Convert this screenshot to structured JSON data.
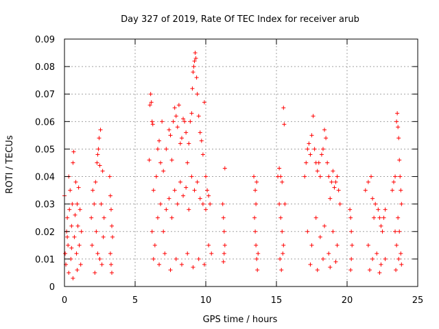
{
  "chart_data": {
    "type": "scatter",
    "title": "Day 327 of 2019, Rate Of TEC Index for receiver arub",
    "xlabel": "GPS time / hours",
    "ylabel": "ROTI / TECUs",
    "xlim": [
      0,
      25
    ],
    "ylim": [
      0,
      0.09
    ],
    "x_ticks": [
      0,
      5,
      10,
      15,
      20,
      25
    ],
    "x_tick_labels": [
      "0",
      "5",
      "10",
      "15",
      "20",
      "25"
    ],
    "y_ticks": [
      0,
      0.01,
      0.02,
      0.03,
      0.04,
      0.05,
      0.06,
      0.07,
      0.08,
      0.09
    ],
    "y_tick_labels": [
      "0",
      "0.01",
      "0.02",
      "0.03",
      "0.04",
      "0.05",
      "0.06",
      "0.07",
      "0.08",
      "0.09"
    ],
    "grid": true,
    "marker": "+",
    "color": "#ff0000",
    "series": [
      {
        "name": "ROTI",
        "points": [
          [
            0.0,
            0.033
          ],
          [
            0.05,
            0.012
          ],
          [
            0.1,
            0.008
          ],
          [
            0.15,
            0.02
          ],
          [
            0.2,
            0.025
          ],
          [
            0.25,
            0.015
          ],
          [
            0.3,
            0.04
          ],
          [
            0.35,
            0.028
          ],
          [
            0.4,
            0.035
          ],
          [
            0.45,
            0.01
          ],
          [
            0.5,
            0.022
          ],
          [
            0.55,
            0.03
          ],
          [
            0.6,
            0.045
          ],
          [
            0.65,
            0.049
          ],
          [
            0.7,
            0.018
          ],
          [
            0.75,
            0.026
          ],
          [
            0.8,
            0.038
          ],
          [
            0.85,
            0.012
          ],
          [
            0.9,
            0.03
          ],
          [
            0.95,
            0.022
          ],
          [
            1.0,
            0.036
          ],
          [
            1.05,
            0.015
          ],
          [
            1.1,
            0.028
          ],
          [
            1.15,
            0.008
          ],
          [
            1.2,
            0.02
          ],
          [
            0.3,
            0.005
          ],
          [
            0.6,
            0.003
          ],
          [
            0.9,
            0.006
          ],
          [
            0.2,
            0.018
          ],
          [
            0.5,
            0.014
          ],
          [
            1.9,
            0.025
          ],
          [
            2.0,
            0.035
          ],
          [
            2.1,
            0.03
          ],
          [
            2.2,
            0.038
          ],
          [
            2.3,
            0.045
          ],
          [
            2.35,
            0.048
          ],
          [
            2.4,
            0.05
          ],
          [
            2.45,
            0.054
          ],
          [
            2.5,
            0.044
          ],
          [
            2.55,
            0.057
          ],
          [
            2.6,
            0.03
          ],
          [
            2.7,
            0.042
          ],
          [
            2.8,
            0.025
          ],
          [
            1.95,
            0.015
          ],
          [
            2.25,
            0.02
          ],
          [
            2.5,
            0.01
          ],
          [
            2.65,
            0.008
          ],
          [
            2.15,
            0.005
          ],
          [
            2.35,
            0.012
          ],
          [
            2.75,
            0.018
          ],
          [
            3.2,
            0.04
          ],
          [
            3.25,
            0.033
          ],
          [
            3.3,
            0.028
          ],
          [
            3.35,
            0.022
          ],
          [
            3.4,
            0.018
          ],
          [
            3.25,
            0.012
          ],
          [
            3.3,
            0.008
          ],
          [
            3.35,
            0.005
          ],
          [
            6.0,
            0.046
          ],
          [
            6.05,
            0.066
          ],
          [
            6.1,
            0.07
          ],
          [
            6.15,
            0.067
          ],
          [
            6.2,
            0.06
          ],
          [
            6.25,
            0.059
          ],
          [
            6.3,
            0.035
          ],
          [
            6.5,
            0.04
          ],
          [
            6.6,
            0.05
          ],
          [
            6.7,
            0.053
          ],
          [
            6.8,
            0.045
          ],
          [
            6.9,
            0.06
          ],
          [
            7.0,
            0.042
          ],
          [
            7.2,
            0.05
          ],
          [
            7.4,
            0.057
          ],
          [
            7.5,
            0.055
          ],
          [
            7.6,
            0.046
          ],
          [
            7.7,
            0.06
          ],
          [
            7.8,
            0.065
          ],
          [
            7.9,
            0.062
          ],
          [
            8.0,
            0.058
          ],
          [
            8.1,
            0.066
          ],
          [
            8.2,
            0.052
          ],
          [
            8.3,
            0.054
          ],
          [
            8.4,
            0.061
          ],
          [
            8.5,
            0.06
          ],
          [
            8.6,
            0.056
          ],
          [
            8.7,
            0.045
          ],
          [
            8.8,
            0.052
          ],
          [
            8.9,
            0.06
          ],
          [
            9.0,
            0.063
          ],
          [
            9.05,
            0.072
          ],
          [
            9.1,
            0.078
          ],
          [
            9.15,
            0.08
          ],
          [
            9.2,
            0.082
          ],
          [
            9.25,
            0.085
          ],
          [
            9.3,
            0.083
          ],
          [
            9.35,
            0.076
          ],
          [
            9.4,
            0.07
          ],
          [
            9.5,
            0.062
          ],
          [
            9.6,
            0.056
          ],
          [
            9.7,
            0.053
          ],
          [
            9.8,
            0.048
          ],
          [
            9.9,
            0.067
          ],
          [
            10.0,
            0.04
          ],
          [
            10.1,
            0.035
          ],
          [
            10.2,
            0.033
          ],
          [
            10.3,
            0.03
          ],
          [
            6.2,
            0.02
          ],
          [
            6.4,
            0.015
          ],
          [
            6.6,
            0.025
          ],
          [
            6.8,
            0.03
          ],
          [
            7.0,
            0.02
          ],
          [
            7.2,
            0.028
          ],
          [
            7.4,
            0.032
          ],
          [
            7.6,
            0.025
          ],
          [
            7.8,
            0.035
          ],
          [
            8.0,
            0.03
          ],
          [
            8.2,
            0.038
          ],
          [
            8.4,
            0.033
          ],
          [
            8.6,
            0.036
          ],
          [
            8.8,
            0.028
          ],
          [
            9.0,
            0.04
          ],
          [
            9.2,
            0.035
          ],
          [
            9.4,
            0.038
          ],
          [
            9.6,
            0.032
          ],
          [
            9.8,
            0.03
          ],
          [
            10.0,
            0.028
          ],
          [
            6.3,
            0.01
          ],
          [
            6.7,
            0.008
          ],
          [
            7.1,
            0.012
          ],
          [
            7.5,
            0.006
          ],
          [
            7.9,
            0.01
          ],
          [
            8.3,
            0.008
          ],
          [
            8.7,
            0.012
          ],
          [
            9.1,
            0.007
          ],
          [
            9.5,
            0.01
          ],
          [
            9.9,
            0.008
          ],
          [
            10.2,
            0.015
          ],
          [
            10.4,
            0.012
          ],
          [
            11.2,
            0.03
          ],
          [
            11.25,
            0.025
          ],
          [
            11.3,
            0.02
          ],
          [
            11.35,
            0.015
          ],
          [
            11.3,
            0.012
          ],
          [
            11.25,
            0.009
          ],
          [
            11.35,
            0.043
          ],
          [
            13.4,
            0.04
          ],
          [
            13.5,
            0.035
          ],
          [
            13.55,
            0.03
          ],
          [
            13.6,
            0.038
          ],
          [
            13.5,
            0.02
          ],
          [
            13.55,
            0.015
          ],
          [
            13.6,
            0.01
          ],
          [
            13.65,
            0.006
          ],
          [
            13.45,
            0.025
          ],
          [
            13.7,
            0.012
          ],
          [
            15.1,
            0.04
          ],
          [
            15.2,
            0.043
          ],
          [
            15.3,
            0.04
          ],
          [
            15.4,
            0.038
          ],
          [
            15.5,
            0.065
          ],
          [
            15.55,
            0.059
          ],
          [
            15.2,
            0.03
          ],
          [
            15.3,
            0.025
          ],
          [
            15.4,
            0.02
          ],
          [
            15.5,
            0.015
          ],
          [
            15.25,
            0.01
          ],
          [
            15.35,
            0.006
          ],
          [
            15.45,
            0.012
          ],
          [
            15.6,
            0.03
          ],
          [
            17.0,
            0.04
          ],
          [
            17.1,
            0.045
          ],
          [
            17.2,
            0.05
          ],
          [
            17.3,
            0.052
          ],
          [
            17.4,
            0.048
          ],
          [
            17.5,
            0.055
          ],
          [
            17.6,
            0.062
          ],
          [
            17.7,
            0.05
          ],
          [
            17.8,
            0.045
          ],
          [
            17.9,
            0.042
          ],
          [
            18.0,
            0.045
          ],
          [
            18.1,
            0.04
          ],
          [
            18.2,
            0.048
          ],
          [
            18.3,
            0.05
          ],
          [
            18.4,
            0.057
          ],
          [
            18.5,
            0.054
          ],
          [
            18.6,
            0.045
          ],
          [
            18.7,
            0.04
          ],
          [
            18.8,
            0.032
          ],
          [
            18.9,
            0.038
          ],
          [
            19.0,
            0.042
          ],
          [
            19.1,
            0.036
          ],
          [
            19.2,
            0.038
          ],
          [
            19.3,
            0.04
          ],
          [
            19.4,
            0.035
          ],
          [
            19.5,
            0.03
          ],
          [
            17.2,
            0.02
          ],
          [
            17.5,
            0.015
          ],
          [
            17.8,
            0.025
          ],
          [
            18.1,
            0.018
          ],
          [
            18.4,
            0.022
          ],
          [
            18.7,
            0.012
          ],
          [
            19.0,
            0.02
          ],
          [
            19.3,
            0.015
          ],
          [
            17.4,
            0.008
          ],
          [
            17.9,
            0.006
          ],
          [
            18.3,
            0.01
          ],
          [
            18.8,
            0.007
          ],
          [
            19.2,
            0.009
          ],
          [
            20.2,
            0.028
          ],
          [
            20.25,
            0.025
          ],
          [
            20.3,
            0.02
          ],
          [
            20.35,
            0.015
          ],
          [
            20.3,
            0.01
          ],
          [
            20.25,
            0.006
          ],
          [
            21.3,
            0.035
          ],
          [
            21.5,
            0.038
          ],
          [
            21.7,
            0.04
          ],
          [
            21.8,
            0.032
          ],
          [
            21.9,
            0.025
          ],
          [
            22.0,
            0.03
          ],
          [
            22.2,
            0.028
          ],
          [
            22.3,
            0.025
          ],
          [
            22.4,
            0.022
          ],
          [
            22.5,
            0.02
          ],
          [
            22.6,
            0.025
          ],
          [
            22.7,
            0.028
          ],
          [
            21.5,
            0.015
          ],
          [
            21.8,
            0.01
          ],
          [
            22.1,
            0.012
          ],
          [
            22.4,
            0.008
          ],
          [
            22.7,
            0.01
          ],
          [
            21.6,
            0.006
          ],
          [
            22.3,
            0.005
          ],
          [
            23.2,
            0.035
          ],
          [
            23.3,
            0.038
          ],
          [
            23.4,
            0.04
          ],
          [
            23.5,
            0.06
          ],
          [
            23.55,
            0.063
          ],
          [
            23.6,
            0.058
          ],
          [
            23.65,
            0.054
          ],
          [
            23.7,
            0.046
          ],
          [
            23.75,
            0.04
          ],
          [
            23.8,
            0.035
          ],
          [
            23.85,
            0.03
          ],
          [
            23.4,
            0.02
          ],
          [
            23.5,
            0.015
          ],
          [
            23.6,
            0.025
          ],
          [
            23.7,
            0.02
          ],
          [
            23.8,
            0.012
          ],
          [
            23.85,
            0.008
          ],
          [
            23.45,
            0.006
          ],
          [
            23.65,
            0.01
          ]
        ]
      }
    ]
  }
}
